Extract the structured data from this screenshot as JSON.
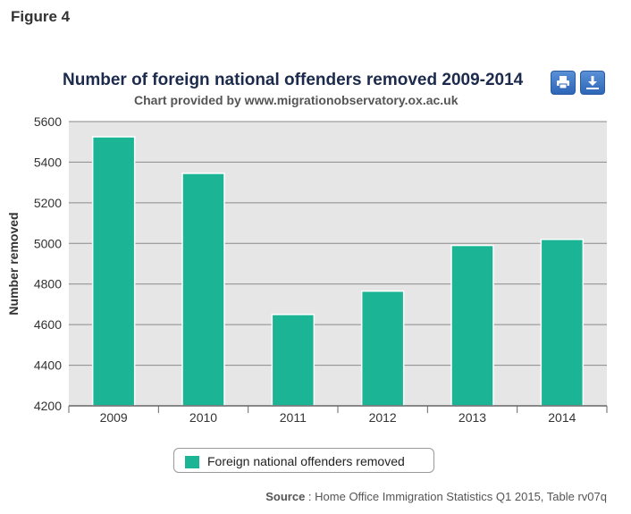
{
  "figure_label": "Figure 4",
  "toolbar": {
    "print_icon": "print-icon",
    "export_icon": "download-icon"
  },
  "source": {
    "label": "Source",
    "separator": " : ",
    "text": "Home Office Immigration Statistics Q1 2015, Table rv07q"
  },
  "colors": {
    "bar": "#1bb596",
    "plot_bg": "#e6e6e6",
    "grid": "#8a8a8a"
  },
  "chart_data": {
    "type": "bar",
    "title": "Number of foreign national offenders removed 2009-2014",
    "subtitle": "Chart provided by www.migrationobservatory.ox.ac.uk",
    "xlabel": "",
    "ylabel": "Number removed",
    "categories": [
      "2009",
      "2010",
      "2011",
      "2012",
      "2013",
      "2014"
    ],
    "series": [
      {
        "name": "Foreign national offenders removed",
        "values": [
          5525,
          5345,
          4650,
          4765,
          4990,
          5020
        ]
      }
    ],
    "ylim": [
      4200,
      5600
    ],
    "yticks": [
      "4200",
      "4400",
      "4600",
      "4800",
      "5000",
      "5200",
      "5400",
      "5600"
    ],
    "grid": true,
    "legend_position": "bottom"
  }
}
